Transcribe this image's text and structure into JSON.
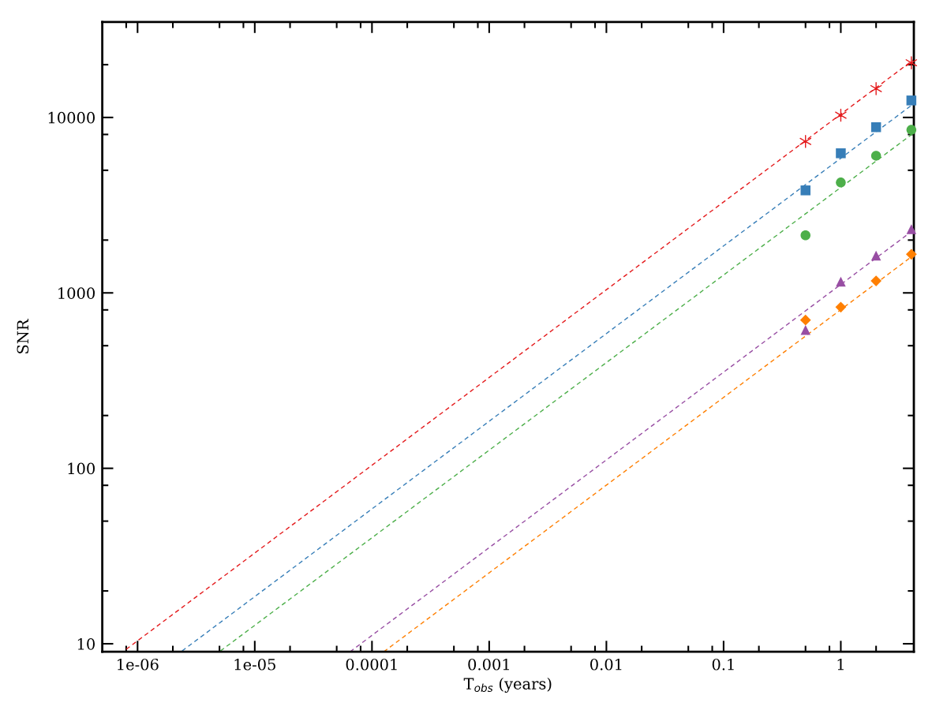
{
  "chart_data": {
    "type": "scatter",
    "xlabel": "T$_{obs}$ (years)",
    "ylabel": "SNR",
    "log": "xy",
    "grid": false,
    "legend": false,
    "xlim": [
      5e-07,
      4.2
    ],
    "ylim": [
      9,
      35000
    ],
    "xticks": [
      {
        "value": 8e-07,
        "label": null
      },
      1e-06,
      {
        "value": 2e-06,
        "label": null
      },
      {
        "value": 5e-06,
        "label": null
      },
      {
        "value": 8e-06,
        "label": null
      },
      1e-05,
      {
        "value": 2e-05,
        "label": null
      },
      {
        "value": 5e-05,
        "label": null
      },
      {
        "value": 8e-05,
        "label": null
      },
      0.0001,
      {
        "value": 0.0002,
        "label": null
      },
      {
        "value": 0.0005,
        "label": null
      },
      {
        "value": 0.0008,
        "label": null
      },
      0.001,
      {
        "value": 0.002,
        "label": null
      },
      {
        "value": 0.005,
        "label": null
      },
      {
        "value": 0.008,
        "label": null
      },
      0.01,
      {
        "value": 0.02,
        "label": null
      },
      {
        "value": 0.05,
        "label": null
      },
      {
        "value": 0.08,
        "label": null
      },
      0.1,
      {
        "value": 0.2,
        "label": null
      },
      {
        "value": 0.5,
        "label": null
      },
      {
        "value": 0.8,
        "label": null
      },
      1,
      {
        "value": 2,
        "label": null
      }
    ],
    "yticks": [
      10,
      {
        "value": 20,
        "label": null
      },
      {
        "value": 50,
        "label": null
      },
      {
        "value": 80,
        "label": null
      },
      100,
      {
        "value": 200,
        "label": null
      },
      {
        "value": 500,
        "label": null
      },
      {
        "value": 800,
        "label": null
      },
      1000,
      {
        "value": 2000,
        "label": null
      },
      {
        "value": 5000,
        "label": null
      },
      {
        "value": 8000,
        "label": null
      },
      10000,
      {
        "value": 20000,
        "label": null
      }
    ],
    "series": [
      {
        "type": "line",
        "line_style": "dashed",
        "marker": "none",
        "color": "#e41a1c",
        "x": [
          8e-07,
          4.2
        ],
        "values": [
          9.3,
          21400
        ]
      },
      {
        "type": "line",
        "line_style": "dashed",
        "marker": "none",
        "color": "#377eb8",
        "x": [
          2.4e-06,
          4.2
        ],
        "values": [
          9.1,
          12000
        ]
      },
      {
        "type": "line",
        "line_style": "dashed",
        "marker": "none",
        "color": "#4daf4a",
        "x": [
          5.1e-06,
          4.2
        ],
        "values": [
          9.1,
          8170
        ]
      },
      {
        "type": "line",
        "line_style": "dashed",
        "marker": "none",
        "color": "#984ea3",
        "x": [
          6.5e-05,
          4.2
        ],
        "values": [
          9.0,
          2290
        ]
      },
      {
        "type": "line",
        "line_style": "dashed",
        "marker": "none",
        "color": "#ff7f00",
        "x": [
          0.000126,
          4.2
        ],
        "values": [
          9.0,
          1645
        ]
      },
      {
        "marker": "cross",
        "color": "#e41a1c",
        "x": [
          0.5,
          1,
          2,
          4
        ],
        "values": [
          7300,
          10300,
          14600,
          20500
        ]
      },
      {
        "marker": "square",
        "color": "#377eb8",
        "x": [
          0.5,
          1,
          2,
          4
        ],
        "values": [
          3840,
          6250,
          8800,
          12500
        ]
      },
      {
        "marker": "circle",
        "color": "#4daf4a",
        "x": [
          0.5,
          1,
          2,
          4
        ],
        "values": [
          2130,
          4260,
          6050,
          8500
        ]
      },
      {
        "marker": "triangle",
        "color": "#984ea3",
        "x": [
          0.5,
          1,
          2,
          4
        ],
        "values": [
          615,
          1160,
          1630,
          2310
        ]
      },
      {
        "marker": "diamond",
        "color": "#ff7f00",
        "x": [
          0.5,
          1,
          2,
          4
        ],
        "values": [
          700,
          830,
          1170,
          1660
        ]
      }
    ]
  }
}
